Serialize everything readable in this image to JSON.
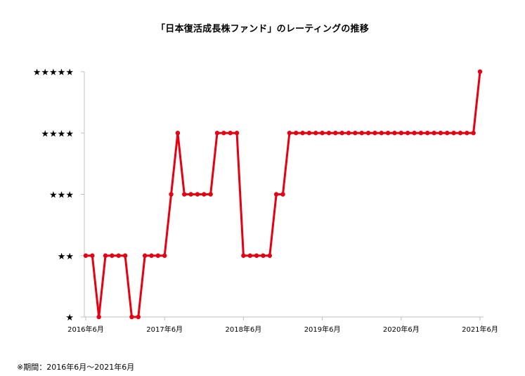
{
  "chart_data": {
    "type": "line",
    "title": "「日本復活成長株ファンド」のレーティングの推移",
    "xlabel": "",
    "ylabel": "",
    "ylim": [
      1,
      5
    ],
    "y_tick_labels": [
      "★",
      "★★",
      "★★★",
      "★★★★",
      "★★★★★"
    ],
    "x_tick_labels": [
      "2016年6月",
      "2017年6月",
      "2018年6月",
      "2019年6月",
      "2020年6月",
      "2021年6月"
    ],
    "x_start": "2016-06",
    "x_end": "2021-06",
    "grid": false,
    "legend": "none",
    "color": "#e60012",
    "series": [
      {
        "values": [
          2,
          2,
          1,
          2,
          2,
          2,
          2,
          1,
          1,
          2,
          2,
          2,
          2,
          3,
          4,
          3,
          3,
          3,
          3,
          3,
          4,
          4,
          4,
          4,
          2,
          2,
          2,
          2,
          2,
          3,
          3,
          4,
          4,
          4,
          4,
          4,
          4,
          4,
          4,
          4,
          4,
          4,
          4,
          4,
          4,
          4,
          4,
          4,
          4,
          4,
          4,
          4,
          4,
          4,
          4,
          4,
          4,
          4,
          4,
          4,
          5
        ]
      }
    ]
  },
  "footnote": "※期間：2016年6月～2021年6月"
}
